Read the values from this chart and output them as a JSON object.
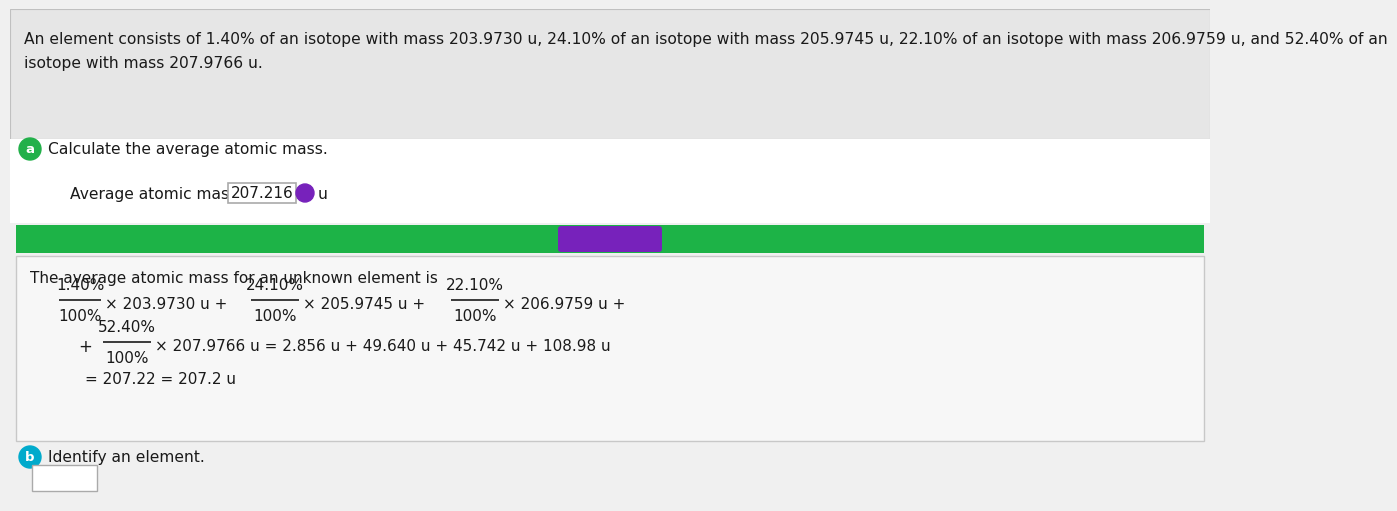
{
  "problem_text_line1": "An element consists of 1.40% of an isotope with mass 203.9730 u, 24.10% of an isotope with mass 205.9745 u, 22.10% of an isotope with mass 206.9759 u, and 52.40% of an",
  "problem_text_line2": "isotope with mass 207.9766 u.",
  "part_a_question": "Calculate the average atomic mass.",
  "avg_mass_label": "Average atomic mass = ",
  "avg_mass_value": "207.216",
  "avg_mass_unit": " u",
  "green_bar_color": "#1db347",
  "solution_box_bg": "#f7f7f7",
  "solution_box_border": "#c8c8c8",
  "solution_intro": "The average atomic mass for an unknown element is",
  "part_b_question": "Identify an element.",
  "bg_color": "#f0f0f0",
  "header_bg": "#e6e6e6",
  "label_a_color": "#22b04a",
  "label_b_color": "#00aacc",
  "text_color": "#1a1a1a",
  "formula_color": "#1a1a1a",
  "answer_border": "#aaaaaa",
  "purple_pill": "#7722bb",
  "white": "#ffffff"
}
